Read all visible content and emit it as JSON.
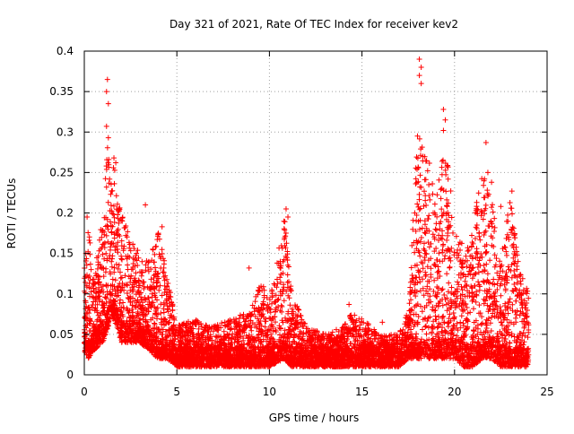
{
  "chart_data": {
    "type": "scatter",
    "title": "Day 321 of 2021, Rate Of TEC Index for receiver kev2",
    "xlabel": "GPS time / hours",
    "ylabel": "ROTI / TECUs",
    "xlim": [
      0,
      25
    ],
    "ylim": [
      0,
      0.4
    ],
    "x_ticks": [
      0,
      5,
      10,
      15,
      20,
      25
    ],
    "x_tick_labels": [
      "0",
      "5",
      "10",
      "15",
      "20",
      "25"
    ],
    "y_ticks": [
      0,
      0.05,
      0.1,
      0.15,
      0.2,
      0.25,
      0.3,
      0.35,
      0.4
    ],
    "y_tick_labels": [
      "0",
      "0.05",
      "0.1",
      "0.15",
      "0.2",
      "0.25",
      "0.3",
      "0.35",
      "0.4"
    ],
    "grid": true,
    "marker": "plus",
    "series_color": "#ff0000",
    "grid_color": "#a0a0a0",
    "envelope": {
      "x": [
        0,
        0.2,
        0.5,
        1.0,
        1.3,
        1.6,
        2.0,
        2.5,
        3.0,
        3.5,
        4.0,
        4.5,
        5.0,
        6.0,
        7.0,
        8.0,
        9.0,
        9.5,
        10.0,
        10.8,
        11.2,
        12.0,
        13.0,
        14.0,
        14.5,
        15.0,
        16.0,
        17.0,
        17.5,
        18.0,
        18.5,
        19.0,
        19.5,
        20.0,
        20.5,
        21.0,
        21.5,
        22.0,
        22.5,
        23.0,
        23.5,
        24.0
      ],
      "y_low": [
        0.03,
        0.02,
        0.03,
        0.04,
        0.06,
        0.07,
        0.04,
        0.04,
        0.04,
        0.03,
        0.02,
        0.02,
        0.01,
        0.01,
        0.01,
        0.01,
        0.01,
        0.01,
        0.01,
        0.02,
        0.01,
        0.01,
        0.01,
        0.01,
        0.01,
        0.01,
        0.01,
        0.01,
        0.02,
        0.02,
        0.02,
        0.02,
        0.02,
        0.02,
        0.01,
        0.01,
        0.02,
        0.02,
        0.01,
        0.01,
        0.01,
        0.01
      ],
      "y_high": [
        0.14,
        0.19,
        0.12,
        0.2,
        0.3,
        0.26,
        0.2,
        0.17,
        0.15,
        0.14,
        0.18,
        0.12,
        0.06,
        0.07,
        0.06,
        0.07,
        0.08,
        0.12,
        0.09,
        0.2,
        0.1,
        0.06,
        0.05,
        0.06,
        0.08,
        0.07,
        0.05,
        0.05,
        0.08,
        0.3,
        0.28,
        0.22,
        0.3,
        0.18,
        0.16,
        0.18,
        0.26,
        0.22,
        0.14,
        0.22,
        0.14,
        0.1
      ]
    },
    "notable_points": [
      {
        "x": 1.25,
        "y": 0.365
      },
      {
        "x": 1.2,
        "y": 0.35
      },
      {
        "x": 1.3,
        "y": 0.335
      },
      {
        "x": 1.2,
        "y": 0.307
      },
      {
        "x": 1.3,
        "y": 0.293
      },
      {
        "x": 1.6,
        "y": 0.268
      },
      {
        "x": 1.7,
        "y": 0.262
      },
      {
        "x": 0.15,
        "y": 0.195
      },
      {
        "x": 4.2,
        "y": 0.183
      },
      {
        "x": 3.3,
        "y": 0.21
      },
      {
        "x": 8.9,
        "y": 0.132
      },
      {
        "x": 10.9,
        "y": 0.205
      },
      {
        "x": 11.0,
        "y": 0.195
      },
      {
        "x": 14.3,
        "y": 0.087
      },
      {
        "x": 16.1,
        "y": 0.065
      },
      {
        "x": 18.1,
        "y": 0.39
      },
      {
        "x": 18.2,
        "y": 0.38
      },
      {
        "x": 18.1,
        "y": 0.37
      },
      {
        "x": 18.2,
        "y": 0.36
      },
      {
        "x": 18.0,
        "y": 0.295
      },
      {
        "x": 19.4,
        "y": 0.328
      },
      {
        "x": 19.5,
        "y": 0.315
      },
      {
        "x": 19.4,
        "y": 0.302
      },
      {
        "x": 19.6,
        "y": 0.258
      },
      {
        "x": 21.7,
        "y": 0.287
      },
      {
        "x": 21.8,
        "y": 0.25
      },
      {
        "x": 22.0,
        "y": 0.238
      },
      {
        "x": 23.1,
        "y": 0.227
      },
      {
        "x": 22.5,
        "y": 0.208
      },
      {
        "x": 21.2,
        "y": 0.213
      }
    ]
  }
}
